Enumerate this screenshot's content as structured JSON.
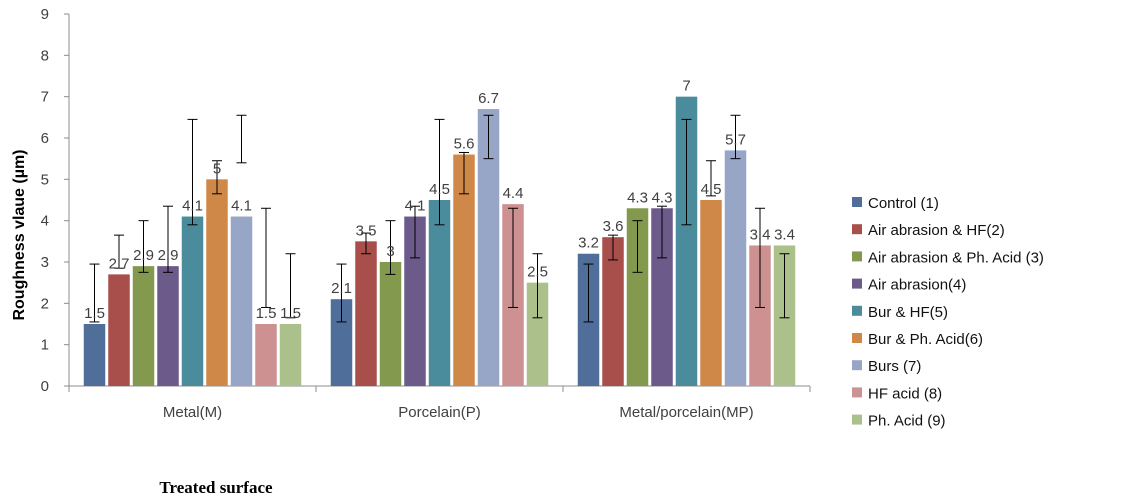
{
  "chart_data": {
    "type": "bar",
    "xlabel": "Treated surface",
    "ylabel": "Roughness vlaue (µm)",
    "ylim": [
      0,
      9
    ],
    "yticks": [
      0,
      1,
      2,
      3,
      4,
      5,
      6,
      7,
      8,
      9
    ],
    "grid": false,
    "legend_position": "right",
    "categories": [
      "Metal(M)",
      "Porcelain(P)",
      "Metal/porcelain(MP)"
    ],
    "series": [
      {
        "name": "Control (1)",
        "color": "#4F6F9A",
        "values": [
          1.5,
          2.1,
          3.2
        ],
        "labels": [
          "1.5",
          "2.1",
          "3.2"
        ],
        "err_low": [
          1.55,
          1.55,
          1.55
        ],
        "err_high": [
          2.95,
          2.95,
          2.95
        ]
      },
      {
        "name": "Air abrasion & HF(2)",
        "color": "#A84E4B",
        "values": [
          2.7,
          3.5,
          3.6
        ],
        "labels": [
          "2.7",
          "3.5",
          "3.6"
        ],
        "err_low": [
          2.85,
          3.2,
          3.05
        ],
        "err_high": [
          3.65,
          3.7,
          3.65
        ]
      },
      {
        "name": "Air abrasion & Ph. Acid (3)",
        "color": "#839A4E",
        "values": [
          2.9,
          3.0,
          4.3
        ],
        "labels": [
          "2.9",
          "3",
          "4.3"
        ],
        "err_low": [
          2.75,
          2.7,
          2.75
        ],
        "err_high": [
          4.0,
          4.0,
          4.0
        ]
      },
      {
        "name": "Air abrasion(4)",
        "color": "#6C5A8A",
        "values": [
          2.9,
          4.1,
          4.3
        ],
        "labels": [
          "2.9",
          "4.1",
          "4.3"
        ],
        "err_low": [
          2.75,
          3.1,
          3.1
        ],
        "err_high": [
          4.35,
          4.35,
          4.35
        ]
      },
      {
        "name": "Bur & HF(5)",
        "color": "#4A8C9C",
        "values": [
          4.1,
          4.5,
          7.0
        ],
        "labels": [
          "4.1",
          "4.5",
          "7"
        ],
        "err_low": [
          3.9,
          3.9,
          3.9
        ],
        "err_high": [
          6.45,
          6.45,
          6.45
        ]
      },
      {
        "name": "Bur & Ph. Acid(6)",
        "color": "#D08848",
        "values": [
          5.0,
          5.6,
          4.5
        ],
        "labels": [
          "5",
          "5.6",
          "4.5"
        ],
        "err_low": [
          4.65,
          4.65,
          4.6
        ],
        "err_high": [
          5.45,
          5.65,
          5.45
        ]
      },
      {
        "name": "Burs (7)",
        "color": "#97A5C7",
        "values": [
          4.1,
          6.7,
          5.7
        ],
        "labels": [
          "4.1",
          "6.7",
          "5.7"
        ],
        "err_low": [
          5.4,
          5.5,
          5.5
        ],
        "err_high": [
          6.55,
          6.55,
          6.55
        ]
      },
      {
        "name": "HF acid (8)",
        "color": "#CC9190",
        "values": [
          1.5,
          4.4,
          3.4
        ],
        "labels": [
          "1.5",
          "4.4",
          "3.4"
        ],
        "err_low": [
          1.9,
          1.9,
          1.9
        ],
        "err_high": [
          4.3,
          4.3,
          4.3
        ]
      },
      {
        "name": "Ph. Acid (9)",
        "color": "#ABC08A",
        "values": [
          1.5,
          2.5,
          3.4
        ],
        "labels": [
          "1.5",
          "2.5",
          "3.4"
        ],
        "err_low": [
          1.65,
          1.65,
          1.65
        ],
        "err_high": [
          3.2,
          3.2,
          3.2
        ]
      }
    ]
  }
}
